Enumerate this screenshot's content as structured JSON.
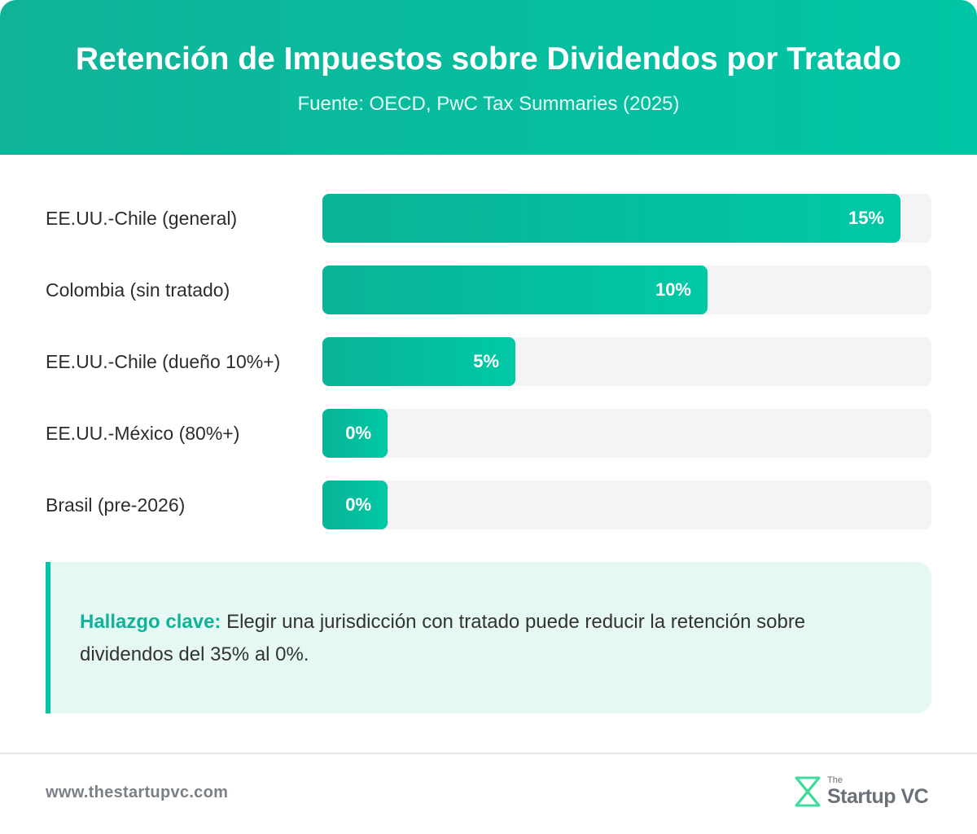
{
  "header": {
    "title": "Retención de Impuestos sobre Dividendos por Tratado",
    "subtitle": "Fuente: OECD, PwC Tax Summaries (2025)"
  },
  "chart_data": {
    "type": "bar",
    "orientation": "horizontal",
    "title": "Retención de Impuestos sobre Dividendos por Tratado",
    "subtitle": "Fuente: OECD, PwC Tax Summaries (2025)",
    "categories": [
      "EE.UU.-Chile (general)",
      "Colombia (sin tratado)",
      "EE.UU.-Chile (dueño 10%+)",
      "EE.UU.-México (80%+)",
      "Brasil (pre-2026)"
    ],
    "values": [
      15,
      10,
      5,
      0,
      0
    ],
    "value_labels": [
      "15%",
      "10%",
      "5%",
      "0%",
      "0%"
    ],
    "unit": "%",
    "xlim": [
      0,
      15.8
    ],
    "grid": false,
    "colors": {
      "bar": "#00c6a5",
      "track": "#f4f4f4"
    }
  },
  "callout": {
    "key": "Hallazgo clave:",
    "text": " Elegir una jurisdicción con tratado puede reducir la retención sobre dividendos del 35% al 0%."
  },
  "footer": {
    "url": "www.thestartupvc.com",
    "logo_the": "The",
    "logo_name": "Startup VC"
  },
  "colors": {
    "accent": "#00c6a5",
    "accent_dark": "#10b398",
    "callout_bg": "#e5f8f4"
  }
}
